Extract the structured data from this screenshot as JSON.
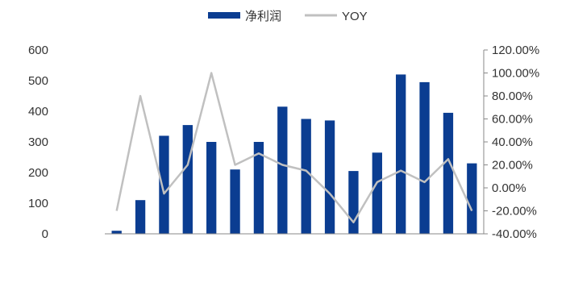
{
  "chart_data": {
    "type": "bar",
    "legend": {
      "placement": "top-center",
      "items": [
        {
          "label": "净利润",
          "marker": "bar",
          "color": "#0b3d91"
        },
        {
          "label": "YOY",
          "marker": "line",
          "color": "#c0c0c0"
        }
      ]
    },
    "categories": [
      "",
      "",
      "",
      "",
      "",
      "",
      "",
      "",
      "",
      "",
      "",
      "",
      "",
      "",
      "",
      ""
    ],
    "series": [
      {
        "name": "净利润",
        "type": "bar",
        "axis": "left",
        "color": "#0b3d91",
        "values": [
          10,
          110,
          320,
          355,
          300,
          210,
          300,
          415,
          375,
          370,
          205,
          265,
          520,
          495,
          395,
          230
        ]
      },
      {
        "name": "YOY",
        "type": "line",
        "axis": "right",
        "color": "#c0c0c0",
        "values": [
          -20,
          80,
          -5,
          20,
          100,
          20,
          30,
          20,
          15,
          -5,
          -30,
          5,
          15,
          5,
          25,
          -20
        ]
      }
    ],
    "y_left": {
      "range": [
        0,
        600
      ],
      "ticks": [
        0,
        100,
        200,
        300,
        400,
        500,
        600
      ],
      "tick_labels": [
        "0",
        "100",
        "200",
        "300",
        "400",
        "500",
        "600"
      ]
    },
    "y_right": {
      "range": [
        -40,
        120
      ],
      "ticks": [
        -40,
        -20,
        0,
        20,
        40,
        60,
        80,
        100,
        120
      ],
      "tick_labels": [
        "-40.00%",
        "-20.00%",
        "0.00%",
        "20.00%",
        "40.00%",
        "60.00%",
        "80.00%",
        "100.00%",
        "120.00%"
      ]
    },
    "grid": false
  }
}
